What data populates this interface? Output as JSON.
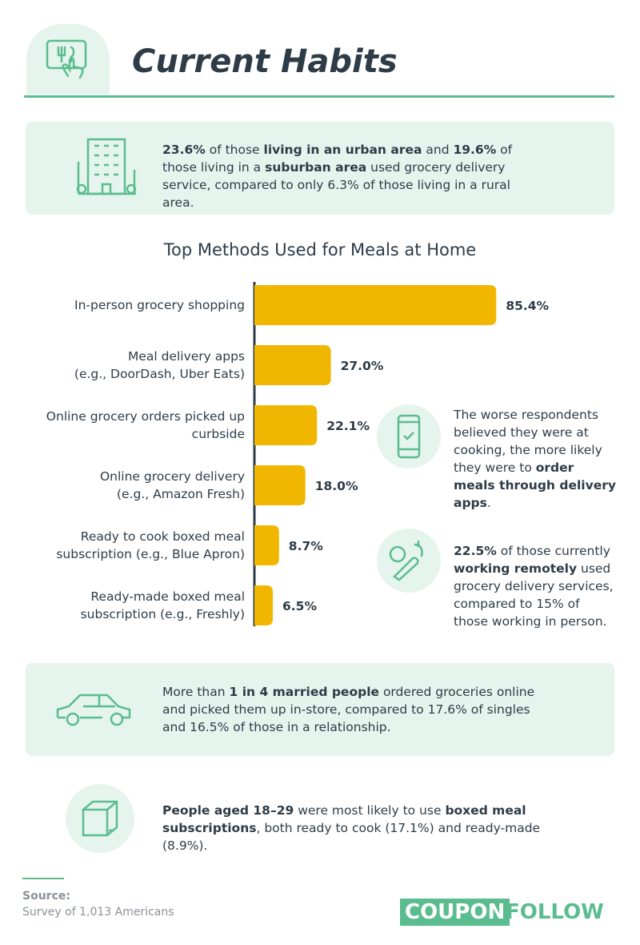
{
  "header": {
    "title": "Current Habits"
  },
  "urban_stat": {
    "parts": [
      {
        "bold": "23.6%"
      },
      " of those ",
      {
        "bold": "living in an urban area"
      },
      " and ",
      {
        "bold": "19.6%"
      },
      " of those living in a ",
      {
        "bold": "suburban area"
      },
      " used grocery delivery service, compared to only 6.3% of those living in a rural area."
    ]
  },
  "chart_data": {
    "type": "bar",
    "orientation": "horizontal",
    "title": "Top Methods Used for Meals at Home",
    "categories": [
      "In-person grocery shopping",
      "Meal delivery apps\n(e.g., DoorDash, Uber Eats)",
      "Online grocery orders picked up\ncurbside",
      "Online grocery delivery\n(e.g., Amazon Fresh)",
      "Ready to cook boxed meal\nsubscription (e.g., Blue Apron)",
      "Ready-made boxed meal\nsubscription (e.g., Freshly)"
    ],
    "values": [
      85.4,
      27.0,
      22.1,
      18.0,
      8.7,
      6.5
    ],
    "value_labels": [
      "85.4%",
      "27.0%",
      "22.1%",
      "18.0%",
      "8.7%",
      "6.5%"
    ],
    "color": "#f1b700"
  },
  "cooking_stat": {
    "parts": [
      "The worse respondents believed they were at cooking, the more likely they were to ",
      {
        "bold": "order meals through delivery apps"
      },
      "."
    ]
  },
  "remote_stat": {
    "parts": [
      {
        "bold": "22.5%"
      },
      " of those currently ",
      {
        "bold": "working remotely"
      },
      " used grocery delivery services, compared to 15% of those working in person."
    ]
  },
  "married_stat": {
    "parts": [
      "More than ",
      {
        "bold": "1 in 4 married people"
      },
      " ordered groceries online and picked them up in-store, compared to 17.6% of singles and 16.5% of those in a relationship."
    ]
  },
  "age_stat": {
    "parts": [
      {
        "bold": "People aged 18–29"
      },
      " were most likely to use ",
      {
        "bold": "boxed meal subscriptions"
      },
      ", both ready to cook (17.1%) and ready-made (8.9%)."
    ]
  },
  "footer": {
    "source_label": "Source:",
    "source_text": "Survey of 1,013 Americans",
    "logo": [
      "COUPON",
      "FOLLOW"
    ]
  }
}
